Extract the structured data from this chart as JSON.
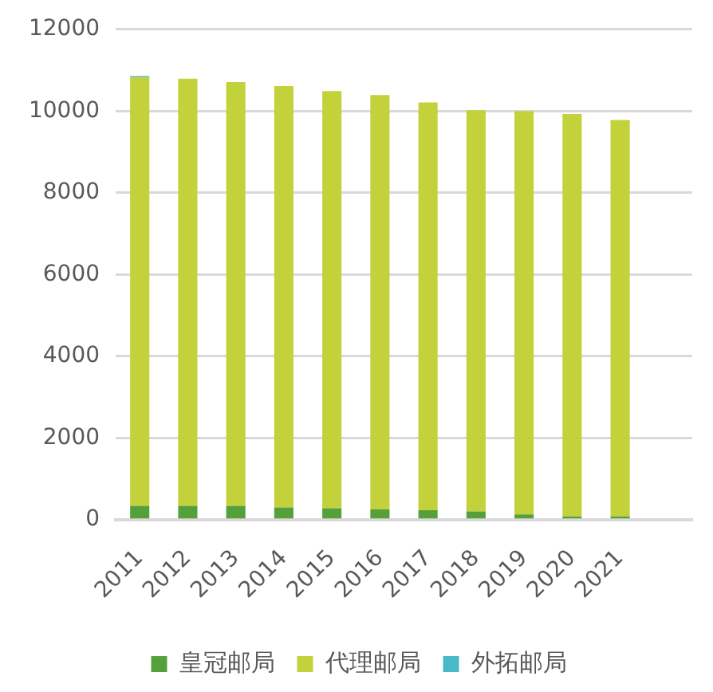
{
  "chart_data": {
    "type": "bar",
    "stacked": true,
    "categories": [
      "2011",
      "2012",
      "2013",
      "2014",
      "2015",
      "2016",
      "2017",
      "2018",
      "2019",
      "2020",
      "2021",
      null
    ],
    "series": [
      {
        "name": "皇冠邮局",
        "color": "#55a03a",
        "values": [
          340,
          340,
          340,
          300,
          280,
          250,
          230,
          200,
          130,
          80,
          80,
          null
        ]
      },
      {
        "name": "代理邮局",
        "color": "#c3d13a",
        "values": [
          10490,
          10450,
          10370,
          10310,
          10210,
          10140,
          9980,
          9820,
          9870,
          9850,
          9700,
          null
        ]
      },
      {
        "name": "外拓邮局",
        "color": "#4bb8c8",
        "values": [
          30,
          0,
          0,
          0,
          0,
          0,
          0,
          0,
          0,
          0,
          0,
          null
        ]
      }
    ],
    "ylim": [
      0,
      12000
    ],
    "yticks": [
      0,
      2000,
      4000,
      6000,
      8000,
      10000,
      12000
    ],
    "grid": "y",
    "legend": "bottom"
  }
}
